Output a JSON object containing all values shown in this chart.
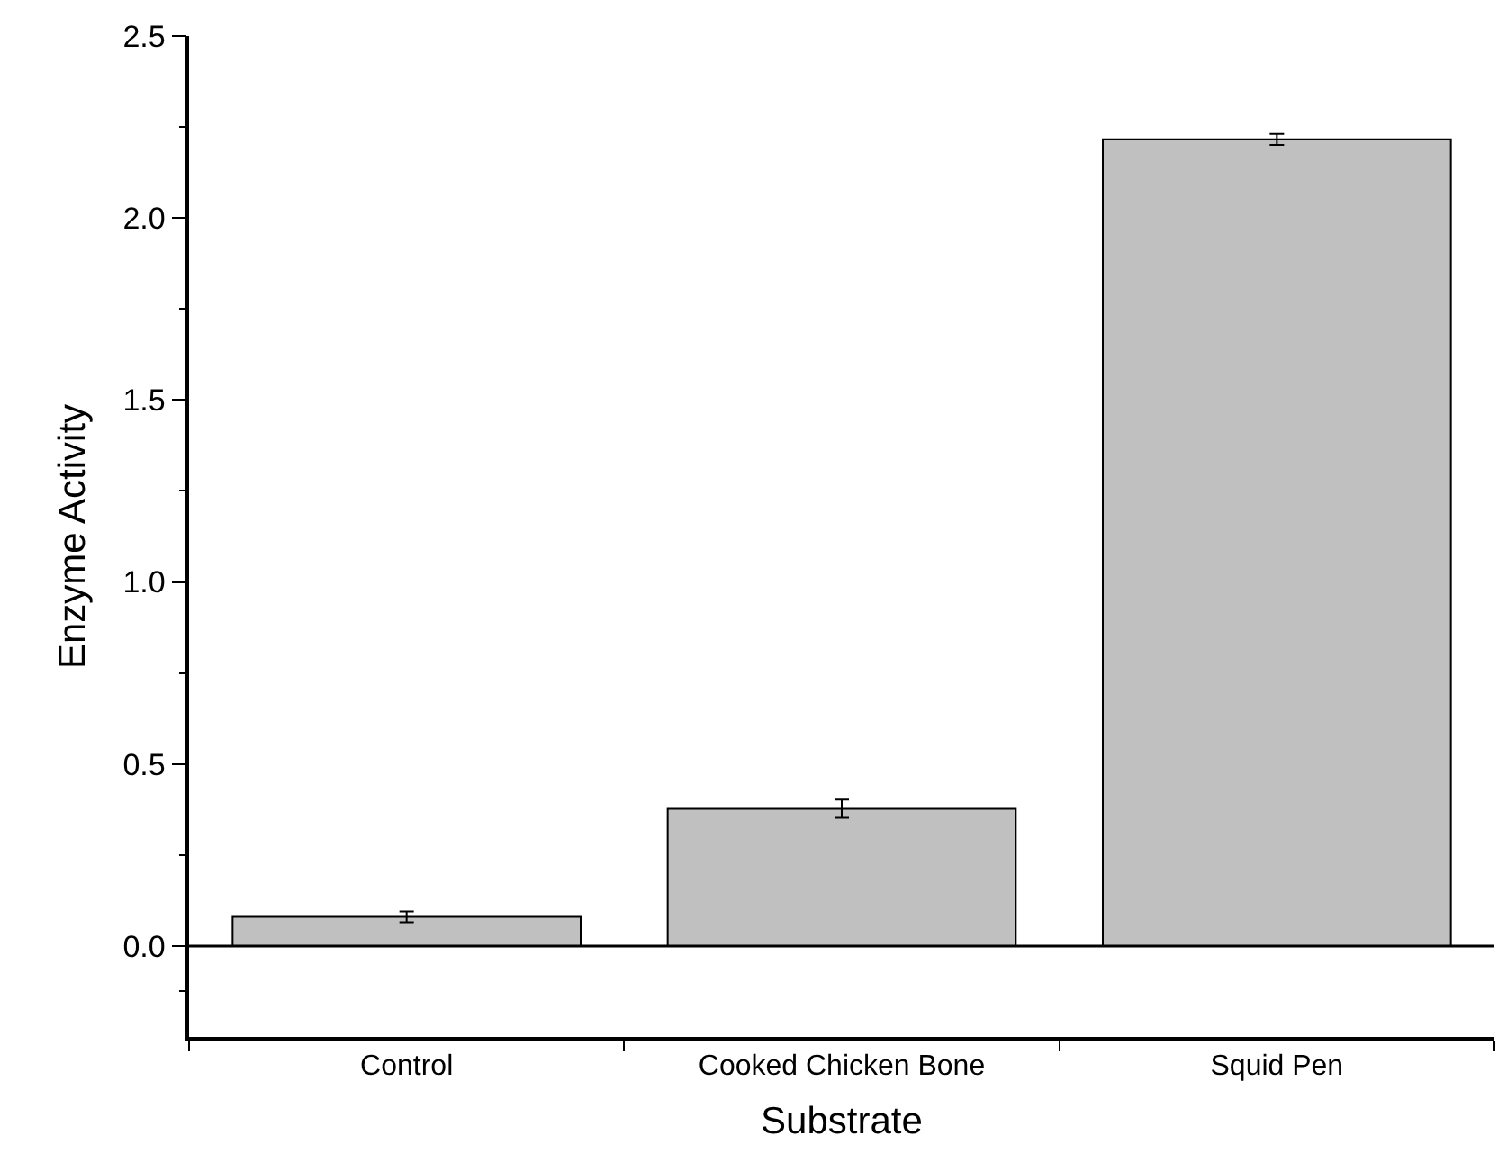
{
  "chart_data": {
    "type": "bar",
    "xlabel": "Substrate",
    "ylabel": "Enzyme Activity",
    "categories": [
      "Control",
      "Cooked Chicken Bone",
      "Squid Pen"
    ],
    "values": [
      0.08,
      0.377,
      2.216
    ],
    "errors": [
      0.015,
      0.025,
      0.015
    ],
    "color": "#c0c0c0",
    "ylim": [
      -0.25,
      2.5
    ],
    "yticks": [
      {
        "value": 0,
        "label": "0.0"
      },
      0.5,
      {
        "value": 1,
        "label": "1.0"
      },
      1.5,
      {
        "value": 2,
        "label": "2.0"
      },
      2.5
    ],
    "ref_lines": [
      {
        "axis": "y",
        "value": 0,
        "color": "#000000"
      }
    ]
  }
}
